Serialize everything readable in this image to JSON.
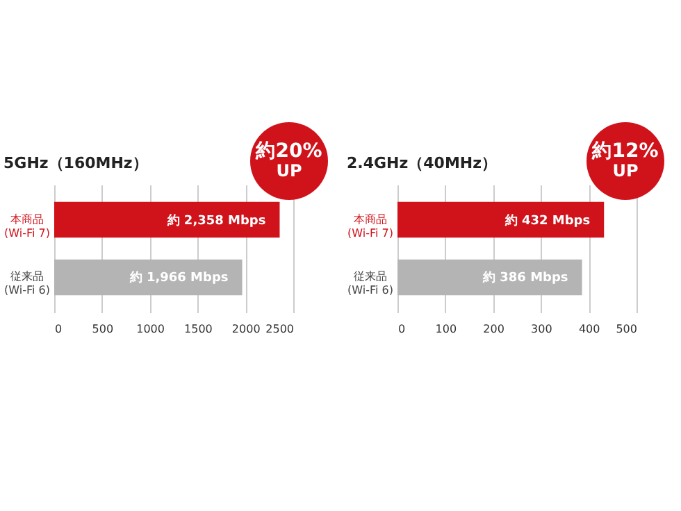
{
  "chart_data": [
    {
      "type": "bar",
      "orientation": "horizontal",
      "title": "5GHz（160MHz）",
      "categories": [
        "本商品\n(Wi-Fi 7)",
        "従来品\n(Wi-Fi 6)"
      ],
      "values": [
        2358,
        1966
      ],
      "colors": [
        "#d0121b",
        "#b4b4b4"
      ],
      "value_labels": [
        "約 2,358 Mbps",
        "約 1,966 Mbps"
      ],
      "xlim": [
        0,
        2500
      ],
      "xticks": [
        0,
        500,
        1000,
        1500,
        2000,
        2500
      ],
      "grid": "x",
      "annotations": [
        "約20% UP"
      ]
    },
    {
      "type": "bar",
      "orientation": "horizontal",
      "title": "2.4GHz（40MHz）",
      "categories": [
        "本商品\n(Wi-Fi 7)",
        "従来品\n(Wi-Fi 6)"
      ],
      "values": [
        432,
        386
      ],
      "colors": [
        "#d0121b",
        "#b4b4b4"
      ],
      "value_labels": [
        "約 432 Mbps",
        "約 386 Mbps"
      ],
      "xlim": [
        0,
        500
      ],
      "xticks": [
        0,
        100,
        200,
        300,
        400,
        500
      ],
      "grid": "x",
      "annotations": [
        "約12% UP"
      ]
    }
  ]
}
